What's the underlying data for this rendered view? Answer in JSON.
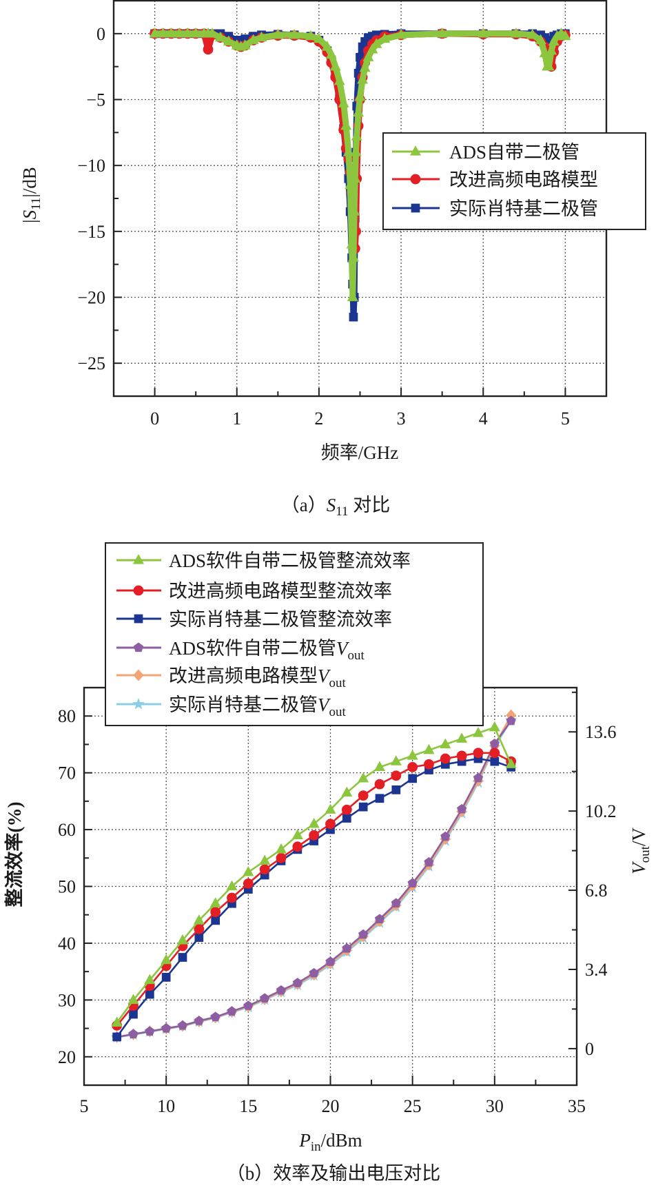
{
  "chart_data": [
    {
      "type": "line",
      "panel": "a",
      "caption": {
        "open": "（a）",
        "var": "S",
        "sub": "11",
        "rest": " 对比"
      },
      "xlabel": "频率/GHz",
      "ylabel": {
        "pre": "|",
        "var": "S",
        "sub": "11",
        "post": "|/dB"
      },
      "xlim": [
        -0.5,
        5.5
      ],
      "ylim": [
        -27.5,
        2.5
      ],
      "xticks": [
        "0",
        "1",
        "2",
        "3",
        "4",
        "5"
      ],
      "yticks": [
        "0",
        "−5",
        "−10",
        "−15",
        "−20",
        "−25"
      ],
      "grid": true,
      "legend_position": "center-right",
      "x": [
        0,
        0.1,
        0.2,
        0.3,
        0.4,
        0.5,
        0.6,
        0.65,
        0.7,
        0.8,
        0.9,
        1.0,
        1.05,
        1.1,
        1.2,
        1.3,
        1.5,
        1.7,
        1.9,
        2.0,
        2.1,
        2.15,
        2.2,
        2.25,
        2.3,
        2.33,
        2.36,
        2.38,
        2.4,
        2.41,
        2.42,
        2.43,
        2.44,
        2.45,
        2.46,
        2.48,
        2.5,
        2.53,
        2.56,
        2.6,
        2.65,
        2.7,
        2.8,
        3.0,
        3.5,
        4.0,
        4.4,
        4.6,
        4.7,
        4.75,
        4.78,
        4.8,
        4.83,
        4.86,
        4.9,
        4.95,
        5.0
      ],
      "series": [
        {
          "name": "实际肖特基二极管",
          "color": "#1b3591",
          "marker": "square",
          "values": [
            0,
            0,
            0,
            0,
            0,
            0,
            0,
            0,
            0,
            0,
            -0.2,
            -0.5,
            -0.6,
            -0.4,
            -0.2,
            -0.1,
            -0.05,
            -0.1,
            -0.2,
            -0.5,
            -1.3,
            -2.0,
            -3.2,
            -4.8,
            -7.2,
            -9,
            -11,
            -13.5,
            -17,
            -19,
            -21.5,
            -20,
            -14,
            -9,
            -5.5,
            -3,
            -1.8,
            -1,
            -0.6,
            -0.3,
            -0.2,
            -0.1,
            -0.05,
            0,
            0,
            0,
            0,
            0,
            -0.1,
            -0.3,
            -0.6,
            -0.7,
            -0.5,
            -0.2,
            -0.1,
            0,
            0
          ]
        },
        {
          "name": "改进高频电路模型",
          "color": "#e31e24",
          "marker": "circle",
          "values": [
            0,
            0,
            0,
            0,
            0,
            0,
            0,
            -1.2,
            -0.1,
            -0.3,
            -0.6,
            -0.9,
            -1.0,
            -0.9,
            -0.5,
            -0.3,
            -0.15,
            -0.15,
            -0.3,
            -0.6,
            -1.4,
            -2.2,
            -3.3,
            -5,
            -7.3,
            -8.7,
            -9.5,
            -10.5,
            -12,
            -13,
            -14,
            -15,
            -16.3,
            -15,
            -11,
            -7,
            -5,
            -3.3,
            -2.2,
            -1.3,
            -0.8,
            -0.5,
            -0.2,
            -0.1,
            0,
            -0.05,
            -0.05,
            -0.2,
            -0.6,
            -1.0,
            -1.6,
            -2.3,
            -2.5,
            -1.4,
            -0.6,
            -0.2,
            -0.1
          ]
        },
        {
          "name": "ADS自带二极管",
          "color": "#8cc63e",
          "marker": "triangle",
          "values": [
            0,
            0,
            0,
            0,
            0,
            0,
            0,
            0,
            0,
            -0.3,
            -0.6,
            -0.9,
            -1.0,
            -0.9,
            -0.5,
            -0.3,
            -0.1,
            -0.1,
            -0.2,
            -0.4,
            -1.0,
            -1.6,
            -2.5,
            -3.6,
            -5.3,
            -7,
            -9,
            -11.5,
            -16,
            -20,
            -17,
            -13.5,
            -11,
            -9,
            -7.8,
            -6,
            -4.8,
            -3.5,
            -2.6,
            -1.8,
            -1.2,
            -0.8,
            -0.4,
            -0.1,
            0,
            0,
            0,
            -0.1,
            -0.5,
            -1.5,
            -2.5,
            -2.5,
            -1.3,
            -0.6,
            -0.2,
            0,
            -0.2
          ]
        }
      ],
      "legend": [
        "ADS自带二极管",
        "改进高频电路模型",
        "实际肖特基二极管"
      ]
    },
    {
      "type": "line",
      "panel": "b",
      "caption": {
        "text": "（b）效率及输出电压对比"
      },
      "xlabel": {
        "var": "P",
        "sub": "in",
        "post": "/dBm"
      },
      "ylabel_left": "整流效率(%)",
      "ylabel_right": {
        "var": "V",
        "sub": "out",
        "post": "/V"
      },
      "xlim": [
        5,
        35
      ],
      "ylim_left": [
        15,
        85
      ],
      "ylim_right": [
        -1.57,
        15.5
      ],
      "xticks": [
        "5",
        "10",
        "15",
        "20",
        "25",
        "30",
        "35"
      ],
      "yticks_left": [
        "20",
        "30",
        "40",
        "50",
        "60",
        "70",
        "80"
      ],
      "yticks_right": [
        "0",
        "3.4",
        "6.8",
        "10.2",
        "13.6"
      ],
      "grid": true,
      "legend_position": "top-left",
      "x": [
        7,
        8,
        9,
        10,
        11,
        12,
        13,
        14,
        15,
        16,
        17,
        18,
        19,
        20,
        21,
        22,
        23,
        24,
        25,
        26,
        27,
        28,
        29,
        30,
        31
      ],
      "series": [
        {
          "name": "ADS软件自带二极管整流效率",
          "axis": "left",
          "color": "#8cc63e",
          "marker": "triangle",
          "values": [
            26,
            30,
            33.5,
            37,
            40.5,
            44,
            47,
            50,
            52.5,
            54.5,
            56.5,
            59,
            61,
            63.5,
            66.5,
            69,
            71,
            72,
            73,
            74,
            75,
            76,
            77,
            78,
            71.5
          ]
        },
        {
          "name": "改进高频电路模型整流效率",
          "axis": "left",
          "color": "#e31e24",
          "marker": "circle",
          "values": [
            25.5,
            29,
            32.5,
            36,
            39.5,
            42.5,
            45.5,
            48,
            50.5,
            53,
            55,
            57,
            59,
            61,
            63.5,
            66,
            68,
            69.5,
            71,
            71.5,
            72.5,
            73,
            73.5,
            73.5,
            72
          ]
        },
        {
          "name": "实际肖特基二极管整流效率",
          "axis": "left",
          "color": "#1b3591",
          "marker": "square",
          "values": [
            23.5,
            27.5,
            31,
            34,
            37.5,
            41,
            44,
            47,
            49.5,
            52,
            54.5,
            56.5,
            58,
            60,
            62,
            64,
            65.5,
            67,
            69,
            70.5,
            71.5,
            72,
            72.5,
            72,
            71
          ]
        },
        {
          "name": "ADS软件自带二极管Vout",
          "axis": "right",
          "color": "#8e5ea2",
          "marker": "pentagon",
          "values": [
            0.5,
            0.62,
            0.74,
            0.87,
            0.99,
            1.19,
            1.36,
            1.6,
            1.84,
            2.16,
            2.5,
            2.82,
            3.24,
            3.73,
            4.3,
            4.9,
            5.56,
            6.24,
            7.1,
            8.0,
            9.1,
            10.28,
            11.62,
            13.09,
            14.07
          ]
        },
        {
          "name": "改进高频电路模型Vout",
          "axis": "right",
          "color": "#f2a474",
          "marker": "diamond",
          "values": [
            0.5,
            0.62,
            0.74,
            0.86,
            0.98,
            1.17,
            1.34,
            1.58,
            1.81,
            2.12,
            2.46,
            2.77,
            3.18,
            3.66,
            4.22,
            4.82,
            5.47,
            6.15,
            7.0,
            7.9,
            9.0,
            10.18,
            11.5,
            13.0,
            14.31
          ]
        },
        {
          "name": "实际肖特基二极管Vout",
          "axis": "right",
          "color": "#8ccde6",
          "marker": "star",
          "values": [
            0.48,
            0.6,
            0.72,
            0.84,
            0.96,
            1.15,
            1.32,
            1.55,
            1.78,
            2.09,
            2.42,
            2.73,
            3.13,
            3.6,
            4.15,
            4.75,
            5.4,
            6.08,
            6.92,
            7.82,
            8.92,
            10.1,
            11.42,
            12.95,
            14.1
          ]
        }
      ],
      "legend": [
        {
          "text": "ADS软件自带二极管整流效率"
        },
        {
          "text": "改进高频电路模型整流效率"
        },
        {
          "text": "实际肖特基二极管整流效率"
        },
        {
          "text": "ADS软件自带二极管",
          "var": "V",
          "sub": "out"
        },
        {
          "text": "改进高频电路模型",
          "var": "V",
          "sub": "out"
        },
        {
          "text": "实际肖特基二极管",
          "var": "V",
          "sub": "out"
        }
      ]
    }
  ]
}
